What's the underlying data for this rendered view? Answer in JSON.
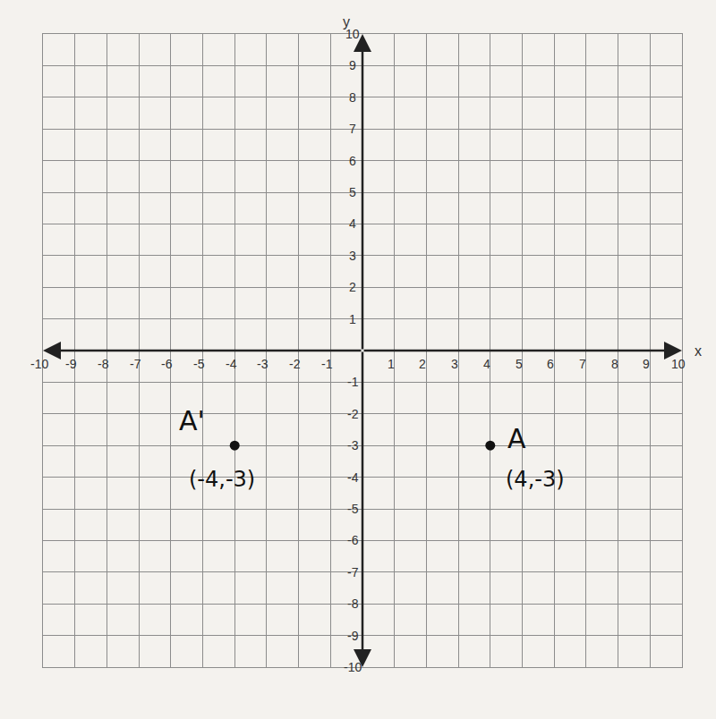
{
  "chart_data": {
    "type": "scatter",
    "x_label": "x",
    "y_label": "y",
    "point_names": [
      "A",
      "A'"
    ],
    "x": [
      4,
      -4
    ],
    "values": [
      -3,
      -3
    ],
    "value_labels": [
      "(4,-3)",
      "(-4,-3)"
    ],
    "color": "#111111",
    "marker": "circle",
    "xlim": [
      -10,
      10
    ],
    "ylim": [
      -10,
      10
    ],
    "xticks": [
      -10,
      -9,
      -8,
      -7,
      -6,
      -5,
      -4,
      -3,
      -2,
      -1,
      1,
      2,
      3,
      4,
      5,
      6,
      7,
      8,
      9,
      10
    ],
    "yticks": [
      -10,
      -9,
      -8,
      -7,
      -6,
      -5,
      -4,
      -3,
      -2,
      -1,
      1,
      2,
      3,
      4,
      5,
      6,
      7,
      8,
      9,
      10
    ],
    "grid": true
  }
}
